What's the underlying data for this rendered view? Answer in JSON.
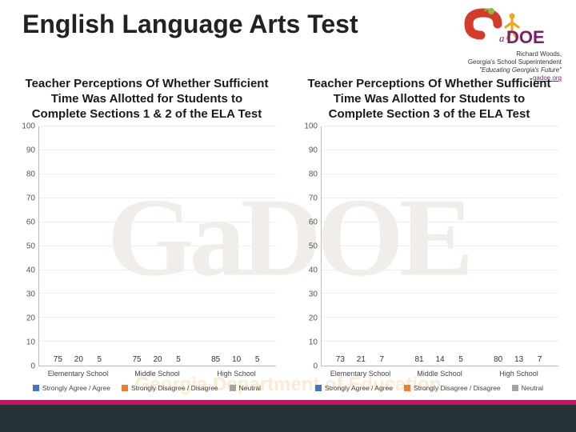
{
  "title": "English Language Arts Test",
  "credit": {
    "line1": "Richard Woods,",
    "line2": "Georgia's School Superintendent",
    "slogan": "\"Educating Georgia's Future\"",
    "link_text": "gadoe.org"
  },
  "theme": {
    "footer_bg": "#273238",
    "accent_bg": "#c4145d",
    "logo_green": "#8dbb3f",
    "logo_red": "#d43b2a",
    "logo_orange": "#f6a11a",
    "logo_text": "#7a1f6a"
  },
  "series": {
    "labels": [
      "Strongly Agree / Agree",
      "Strongly Disagree / Disagree",
      "Neutral"
    ],
    "colors": [
      "#4472c4",
      "#ed7d31",
      "#a5a5a5"
    ]
  },
  "y_axis": {
    "min": 0,
    "max": 100,
    "step": 10
  },
  "charts": [
    {
      "title": "Teacher Perceptions Of Whether Sufficient Time Was Allotted for Students to Complete Sections 1 & 2 of the ELA Test",
      "categories": [
        "Elementary School",
        "Middle School",
        "High School"
      ],
      "data": [
        [
          75,
          20,
          5
        ],
        [
          75,
          20,
          5
        ],
        [
          85,
          10,
          5
        ]
      ]
    },
    {
      "title": "Teacher Perceptions Of Whether Sufficient Time Was Allotted for Students to Complete Section 3 of the ELA Test",
      "categories": [
        "Elementary School",
        "Middle School",
        "High School"
      ],
      "data": [
        [
          73,
          21,
          7
        ],
        [
          81,
          14,
          5
        ],
        [
          80,
          13,
          7
        ]
      ]
    }
  ]
}
